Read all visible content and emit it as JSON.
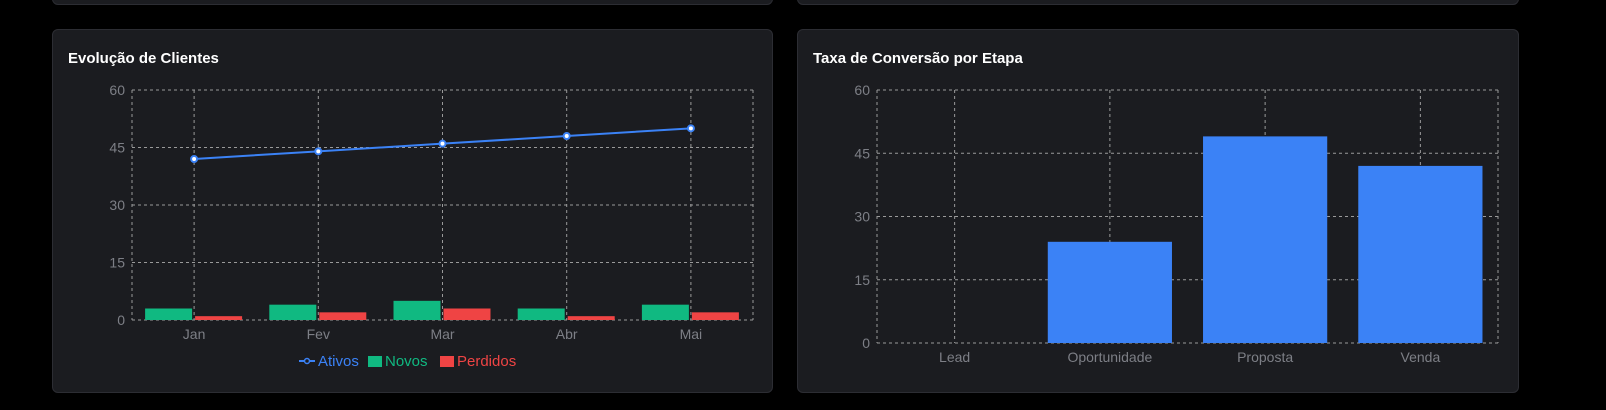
{
  "colors": {
    "background": "#000000",
    "card": "#1b1c20",
    "grid": "#9a9a9a",
    "tick": "#7d7f86",
    "ativos": "#3b82f6",
    "novos": "#10b981",
    "perdidos": "#ef4444",
    "bar": "#3b82f6"
  },
  "left_card": {
    "title": "Evolução de Clientes"
  },
  "right_card": {
    "title": "Taxa de Conversão por Etapa"
  },
  "chart_data": [
    {
      "type": "line+bar",
      "title": "Evolução de Clientes",
      "categories": [
        "Jan",
        "Fev",
        "Mar",
        "Abr",
        "Mai"
      ],
      "ylim": [
        0,
        60
      ],
      "yticks": [
        0,
        15,
        30,
        45,
        60
      ],
      "grid": true,
      "legend_position": "bottom-center",
      "series": [
        {
          "name": "Ativos",
          "kind": "line",
          "color": "#3b82f6",
          "values": [
            42,
            44,
            46,
            48,
            50
          ]
        },
        {
          "name": "Novos",
          "kind": "bar",
          "color": "#10b981",
          "values": [
            3,
            4,
            5,
            3,
            4
          ]
        },
        {
          "name": "Perdidos",
          "kind": "bar",
          "color": "#ef4444",
          "values": [
            1,
            2,
            3,
            1,
            2
          ]
        }
      ]
    },
    {
      "type": "bar",
      "title": "Taxa de Conversão por Etapa",
      "categories": [
        "Lead",
        "Oportunidade",
        "Proposta",
        "Venda"
      ],
      "values": [
        0,
        24,
        49,
        42
      ],
      "ylim": [
        0,
        60
      ],
      "yticks": [
        0,
        15,
        30,
        45,
        60
      ],
      "grid": true,
      "legend_position": "none"
    }
  ]
}
